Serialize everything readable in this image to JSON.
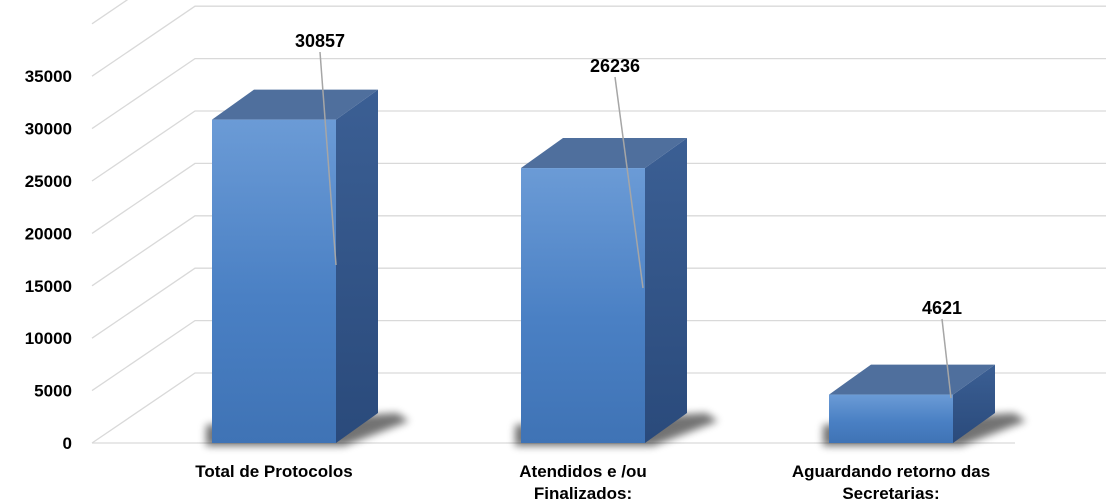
{
  "chart_data": {
    "type": "bar",
    "categories": [
      [
        "Total de Protocolos"
      ],
      [
        "Atendidos e /ou",
        "Finalizados:"
      ],
      [
        "Aguardando retorno das",
        "Secretarias:"
      ]
    ],
    "values": [
      30857,
      26236,
      4621
    ],
    "data_labels": [
      "30857",
      "26236",
      "4621"
    ],
    "yticks": [
      "0",
      "5000",
      "10000",
      "15000",
      "20000",
      "25000",
      "30000",
      "35000"
    ],
    "ylim": [
      0,
      35000
    ],
    "grid": true,
    "style": "3d-column",
    "colors": {
      "front": "#4a80c4",
      "side": "#2f5287",
      "top": "#4f6f9d",
      "grid": "#d9d9d9"
    }
  }
}
